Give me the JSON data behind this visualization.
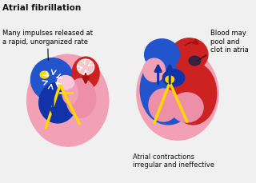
{
  "title": "Atrial fibrillation",
  "label_left": "Many impulses released at\na rapid, unorganized rate",
  "label_right_top": "Blood may\npool and\nclot in atria",
  "label_right_bottom": "Atrial contractions\nirregular and ineffective",
  "bg_color": "#f0f0f0",
  "heart_pink": "#F2A0B5",
  "heart_pink_light": "#F8C8D8",
  "heart_pink_mid": "#EE8FAA",
  "heart_red": "#CC2222",
  "heart_red_dark": "#AA1111",
  "heart_blue": "#2255CC",
  "heart_blue_dark": "#1133AA",
  "yellow": "#FFD700",
  "yellow_dark": "#E8A800",
  "text_color": "#111111",
  "title_fontsize": 7.5,
  "label_fontsize": 6.0
}
